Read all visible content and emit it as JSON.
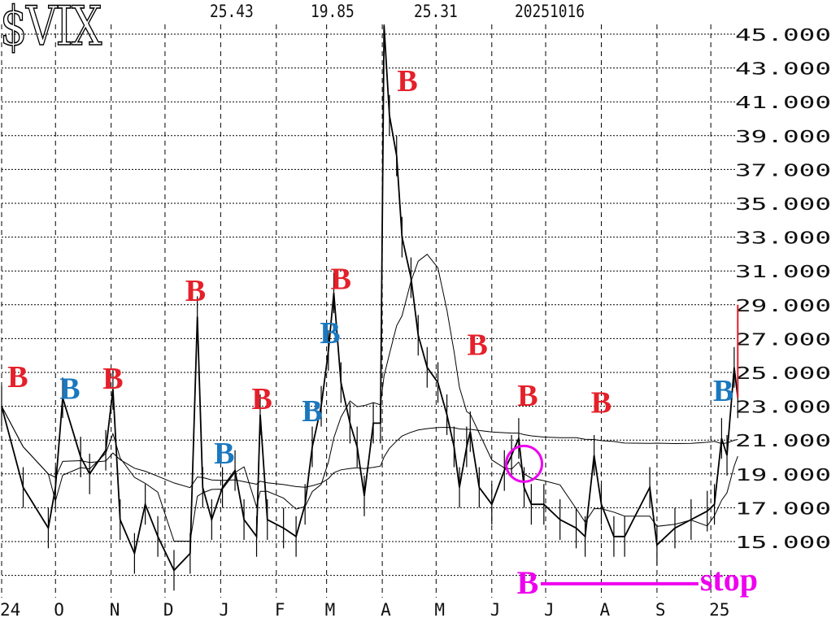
{
  "header": {
    "symbol": "$VIX",
    "values": [
      "25.43",
      "19.85",
      "25.31",
      "20251016"
    ]
  },
  "colors": {
    "buy_red": "#e4202a",
    "buy_blue": "#1a78be",
    "annotation": "#ee00ee",
    "price": "#000000",
    "last_bar": "#e4202a"
  },
  "chart_data": {
    "type": "line",
    "title": "$VIX",
    "x_range": [
      "2024-09-01",
      "2025-10-16"
    ],
    "ylim": [
      13,
      45
    ],
    "y_tick_labels": [
      "45.000",
      "43.000",
      "41.000",
      "39.000",
      "37.000",
      "35.000",
      "33.000",
      "31.000",
      "29.000",
      "27.000",
      "25.000",
      "23.000",
      "21.000",
      "19.000",
      "17.000",
      "15.000"
    ],
    "y_ticks": [
      45,
      43,
      41,
      39,
      37,
      35,
      33,
      31,
      29,
      27,
      25,
      23,
      21,
      19,
      17,
      15
    ],
    "x_tick_labels": [
      {
        "date": "2024-09-01",
        "label": "24"
      },
      {
        "date": "2024-10-01",
        "label": "O"
      },
      {
        "date": "2024-11-01",
        "label": "N"
      },
      {
        "date": "2024-12-01",
        "label": "D"
      },
      {
        "date": "2025-01-01",
        "label": "J"
      },
      {
        "date": "2025-02-01",
        "label": "F"
      },
      {
        "date": "2025-03-01",
        "label": "M"
      },
      {
        "date": "2025-04-01",
        "label": "A"
      },
      {
        "date": "2025-05-01",
        "label": "M"
      },
      {
        "date": "2025-06-01",
        "label": "J"
      },
      {
        "date": "2025-07-01",
        "label": "J"
      },
      {
        "date": "2025-08-01",
        "label": "A"
      },
      {
        "date": "2025-09-01",
        "label": "S"
      },
      {
        "date": "2025-10-01",
        "label": "25"
      }
    ],
    "grid": true,
    "series": [
      {
        "values": [
          [
            "2024-09-01",
            23.0
          ],
          [
            "2024-09-13",
            18.2
          ],
          [
            "2024-09-27",
            15.8
          ],
          [
            "2024-10-01",
            18.2
          ],
          [
            "2024-10-05",
            23.5
          ],
          [
            "2024-10-15",
            20.0
          ],
          [
            "2024-10-20",
            19.0
          ],
          [
            "2024-10-29",
            20.4
          ],
          [
            "2024-11-02",
            24.0
          ],
          [
            "2024-11-06",
            16.3
          ],
          [
            "2024-11-14",
            14.3
          ],
          [
            "2024-11-20",
            17.2
          ],
          [
            "2024-11-27",
            15.3
          ],
          [
            "2024-12-06",
            13.3
          ],
          [
            "2024-12-15",
            14.3
          ],
          [
            "2024-12-19",
            28.3
          ],
          [
            "2024-12-22",
            18.2
          ],
          [
            "2024-12-27",
            16.3
          ],
          [
            "2025-01-02",
            18.2
          ],
          [
            "2025-01-09",
            19.2
          ],
          [
            "2025-01-14",
            16.3
          ],
          [
            "2025-01-21",
            15.3
          ],
          [
            "2025-01-23",
            22.5
          ],
          [
            "2025-01-27",
            16.3
          ],
          [
            "2025-02-05",
            15.8
          ],
          [
            "2025-02-12",
            15.3
          ],
          [
            "2025-02-17",
            17.2
          ],
          [
            "2025-02-21",
            20.6
          ],
          [
            "2025-02-26",
            23.0
          ],
          [
            "2025-03-02",
            26.3
          ],
          [
            "2025-03-05",
            29.7
          ],
          [
            "2025-03-09",
            24.4
          ],
          [
            "2025-03-14",
            22.0
          ],
          [
            "2025-03-18",
            20.6
          ],
          [
            "2025-03-22",
            17.7
          ],
          [
            "2025-03-27",
            22.0
          ],
          [
            "2025-03-31",
            22.0
          ],
          [
            "2025-04-02",
            45.5
          ],
          [
            "2025-04-05",
            40.2
          ],
          [
            "2025-04-09",
            37.8
          ],
          [
            "2025-04-12",
            33.0
          ],
          [
            "2025-04-17",
            30.6
          ],
          [
            "2025-04-21",
            27.2
          ],
          [
            "2025-04-26",
            25.3
          ],
          [
            "2025-05-02",
            24.4
          ],
          [
            "2025-05-07",
            22.5
          ],
          [
            "2025-05-11",
            20.6
          ],
          [
            "2025-05-14",
            18.2
          ],
          [
            "2025-05-18",
            20.6
          ],
          [
            "2025-05-20",
            21.5
          ],
          [
            "2025-05-25",
            18.2
          ],
          [
            "2025-06-01",
            17.2
          ],
          [
            "2025-06-08",
            19.2
          ],
          [
            "2025-06-12",
            20.1
          ],
          [
            "2025-06-16",
            21.1
          ],
          [
            "2025-06-19",
            18.2
          ],
          [
            "2025-06-23",
            17.2
          ],
          [
            "2025-06-30",
            17.2
          ],
          [
            "2025-07-09",
            16.3
          ],
          [
            "2025-07-18",
            15.8
          ],
          [
            "2025-07-23",
            15.3
          ],
          [
            "2025-07-28",
            20.1
          ],
          [
            "2025-08-01",
            17.2
          ],
          [
            "2025-08-08",
            15.3
          ],
          [
            "2025-08-14",
            15.3
          ],
          [
            "2025-08-28",
            18.2
          ],
          [
            "2025-09-01",
            14.8
          ],
          [
            "2025-09-11",
            15.8
          ],
          [
            "2025-09-20",
            16.3
          ],
          [
            "2025-09-29",
            16.8
          ],
          [
            "2025-10-03",
            17.2
          ],
          [
            "2025-10-07",
            21.1
          ],
          [
            "2025-10-10",
            20.1
          ],
          [
            "2025-10-14",
            25.3
          ],
          [
            "2025-10-16",
            23.5
          ]
        ]
      }
    ],
    "last_bar": {
      "date": "2025-10-16",
      "low": 23.5,
      "high": 29.0
    },
    "moving_averages": [
      20,
      200
    ],
    "signals": [
      {
        "date": "2024-09-10",
        "level": 24.8,
        "label": "B",
        "color": "red"
      },
      {
        "date": "2024-10-09",
        "level": 24.1,
        "label": "B",
        "color": "blue"
      },
      {
        "date": "2024-11-02",
        "level": 24.7,
        "label": "B",
        "color": "red"
      },
      {
        "date": "2024-12-18",
        "level": 29.9,
        "label": "B",
        "color": "red"
      },
      {
        "date": "2025-01-03",
        "level": 20.3,
        "label": "B",
        "color": "blue"
      },
      {
        "date": "2025-01-24",
        "level": 23.5,
        "label": "B",
        "color": "red"
      },
      {
        "date": "2025-02-21",
        "level": 22.8,
        "label": "B",
        "color": "blue"
      },
      {
        "date": "2025-03-03",
        "level": 27.4,
        "label": "B",
        "color": "blue"
      },
      {
        "date": "2025-03-09",
        "level": 30.6,
        "label": "B",
        "color": "red"
      },
      {
        "date": "2025-04-15",
        "level": 42.3,
        "label": "B",
        "color": "red"
      },
      {
        "date": "2025-05-24",
        "level": 26.7,
        "label": "B",
        "color": "red"
      },
      {
        "date": "2025-06-21",
        "level": 23.7,
        "label": "B",
        "color": "red"
      },
      {
        "date": "2025-08-01",
        "level": 23.3,
        "label": "B",
        "color": "red"
      },
      {
        "date": "2025-10-08",
        "level": 24.0,
        "label": "B",
        "color": "blue"
      }
    ],
    "circle": {
      "date": "2025-06-19",
      "level": 19.6
    },
    "annotation": {
      "start_label": "B",
      "end_label": "stop",
      "start_date": "2025-06-21",
      "end_date": "2025-10-14",
      "level": 12.6
    }
  }
}
